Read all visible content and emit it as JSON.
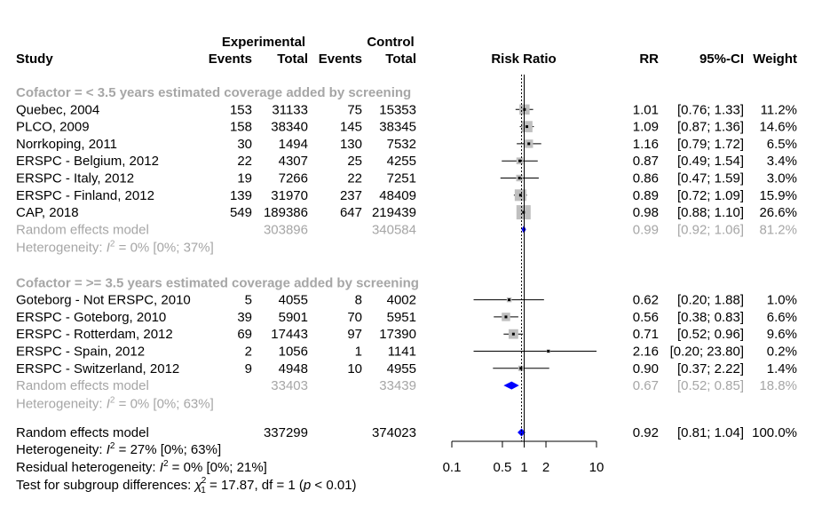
{
  "chart_data": {
    "type": "forest",
    "title": "",
    "xlabel": "Risk Ratio",
    "xscale": "log",
    "xlim": [
      0.1,
      10
    ],
    "x_ticks": [
      "0.1",
      "0.5",
      "1",
      "2",
      "10"
    ],
    "x_tick_values": [
      0.1,
      0.5,
      1,
      2,
      10
    ],
    "overall_line": 0.92,
    "headers": {
      "study": "Study",
      "experimental": "Experimental",
      "control": "Control",
      "events": "Events",
      "total": "Total",
      "plot": "Risk Ratio",
      "rr": "RR",
      "ci": "95%-CI",
      "weight": "Weight"
    },
    "subgroups": [
      {
        "label": "Cofactor = < 3.5 years estimated coverage added by screening",
        "studies": [
          {
            "name": "Quebec, 2004",
            "e_events": "153",
            "e_total": "31133",
            "c_events": "75",
            "c_total": "15353",
            "rr": 1.01,
            "lo": 0.76,
            "hi": 1.33,
            "rr_text": "1.01",
            "ci_text": "[0.76; 1.33]",
            "weight": "11.2%",
            "w": 11.2
          },
          {
            "name": "PLCO, 2009",
            "e_events": "158",
            "e_total": "38340",
            "c_events": "145",
            "c_total": "38345",
            "rr": 1.09,
            "lo": 0.87,
            "hi": 1.36,
            "rr_text": "1.09",
            "ci_text": "[0.87; 1.36]",
            "weight": "14.6%",
            "w": 14.6
          },
          {
            "name": "Norrkoping, 2011",
            "e_events": "30",
            "e_total": "1494",
            "c_events": "130",
            "c_total": "7532",
            "rr": 1.16,
            "lo": 0.79,
            "hi": 1.72,
            "rr_text": "1.16",
            "ci_text": "[0.79; 1.72]",
            "weight": "6.5%",
            "w": 6.5
          },
          {
            "name": "ERSPC - Belgium, 2012",
            "e_events": "22",
            "e_total": "4307",
            "c_events": "25",
            "c_total": "4255",
            "rr": 0.87,
            "lo": 0.49,
            "hi": 1.54,
            "rr_text": "0.87",
            "ci_text": "[0.49; 1.54]",
            "weight": "3.4%",
            "w": 3.4
          },
          {
            "name": "ERSPC - Italy, 2012",
            "e_events": "19",
            "e_total": "7266",
            "c_events": "22",
            "c_total": "7251",
            "rr": 0.86,
            "lo": 0.47,
            "hi": 1.59,
            "rr_text": "0.86",
            "ci_text": "[0.47; 1.59]",
            "weight": "3.0%",
            "w": 3.0
          },
          {
            "name": "ERSPC - Finland, 2012",
            "e_events": "139",
            "e_total": "31970",
            "c_events": "237",
            "c_total": "48409",
            "rr": 0.89,
            "lo": 0.72,
            "hi": 1.09,
            "rr_text": "0.89",
            "ci_text": "[0.72; 1.09]",
            "weight": "15.9%",
            "w": 15.9
          },
          {
            "name": "CAP, 2018",
            "e_events": "549",
            "e_total": "189386",
            "c_events": "647",
            "c_total": "219439",
            "rr": 0.98,
            "lo": 0.88,
            "hi": 1.1,
            "rr_text": "0.98",
            "ci_text": "[0.88; 1.10]",
            "weight": "26.6%",
            "w": 26.6
          }
        ],
        "model": {
          "label": "Random effects model",
          "e_total": "303896",
          "c_total": "340584",
          "rr": 0.99,
          "lo": 0.92,
          "hi": 1.06,
          "rr_text": "0.99",
          "ci_text": "[0.92; 1.06]",
          "weight": "81.2%"
        },
        "heterogeneity": {
          "prefix": "Heterogeneity: ",
          "i": "I",
          "sup": "2",
          "rest": " = 0% [0%; 37%]"
        }
      },
      {
        "label": "Cofactor = >= 3.5 years estimated coverage added by screening",
        "studies": [
          {
            "name": "Goteborg - Not ERSPC, 2010",
            "e_events": "5",
            "e_total": "4055",
            "c_events": "8",
            "c_total": "4002",
            "rr": 0.62,
            "lo": 0.2,
            "hi": 1.88,
            "rr_text": "0.62",
            "ci_text": "[0.20; 1.88]",
            "weight": "1.0%",
            "w": 1.0
          },
          {
            "name": "ERSPC - Goteborg, 2010",
            "e_events": "39",
            "e_total": "5901",
            "c_events": "70",
            "c_total": "5951",
            "rr": 0.56,
            "lo": 0.38,
            "hi": 0.83,
            "rr_text": "0.56",
            "ci_text": "[0.38; 0.83]",
            "weight": "6.6%",
            "w": 6.6
          },
          {
            "name": "ERSPC - Rotterdam, 2012",
            "e_events": "69",
            "e_total": "17443",
            "c_events": "97",
            "c_total": "17390",
            "rr": 0.71,
            "lo": 0.52,
            "hi": 0.96,
            "rr_text": "0.71",
            "ci_text": "[0.52; 0.96]",
            "weight": "9.6%",
            "w": 9.6
          },
          {
            "name": "ERSPC - Spain, 2012",
            "e_events": "2",
            "e_total": "1056",
            "c_events": "1",
            "c_total": "1141",
            "rr": 2.16,
            "lo": 0.2,
            "hi": 23.8,
            "rr_text": "2.16",
            "ci_text": "[0.20; 23.80]",
            "weight": "0.2%",
            "w": 0.2
          },
          {
            "name": "ERSPC - Switzerland, 2012",
            "e_events": "9",
            "e_total": "4948",
            "c_events": "10",
            "c_total": "4955",
            "rr": 0.9,
            "lo": 0.37,
            "hi": 2.22,
            "rr_text": "0.90",
            "ci_text": "[0.37; 2.22]",
            "weight": "1.4%",
            "w": 1.4
          }
        ],
        "model": {
          "label": "Random effects model",
          "e_total": "33403",
          "c_total": "33439",
          "rr": 0.67,
          "lo": 0.52,
          "hi": 0.85,
          "rr_text": "0.67",
          "ci_text": "[0.52; 0.85]",
          "weight": "18.8%"
        },
        "heterogeneity": {
          "prefix": "Heterogeneity: ",
          "i": "I",
          "sup": "2",
          "rest": " = 0% [0%; 63%]"
        }
      }
    ],
    "overall": {
      "label": "Random effects model",
      "e_total": "337299",
      "c_total": "374023",
      "rr": 0.92,
      "lo": 0.81,
      "hi": 1.04,
      "rr_text": "0.92",
      "ci_text": "[0.81; 1.04]",
      "weight": "100.0%"
    },
    "footer": {
      "heterogeneity": {
        "prefix": "Heterogeneity: ",
        "i": "I",
        "sup": "2",
        "rest": " = 27% [0%; 63%]"
      },
      "residual": {
        "prefix": "Residual heterogeneity: ",
        "i": "I",
        "sup": "2",
        "rest": " = 0% [0%; 21%]"
      },
      "subgroup_test": {
        "prefix": "Test for subgroup differences: ",
        "chi": "χ",
        "sup": "2",
        "sub": "1",
        "mid": " = 17.87, df = 1 (",
        "p": "p",
        "end": " < 0.01)"
      }
    },
    "colors": {
      "box": "#bfbfbf",
      "diamond": "#0000ff",
      "gray_text": "#a6a6a6"
    }
  }
}
